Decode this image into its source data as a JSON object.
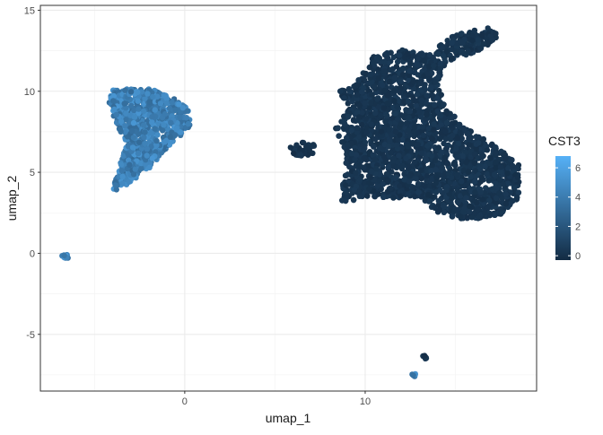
{
  "chart_data": {
    "type": "scatter",
    "xlabel": "umap_1",
    "ylabel": "umap_2",
    "xlim": [
      -8,
      19.5
    ],
    "ylim": [
      -8.5,
      15.3
    ],
    "x_ticks": [
      0,
      10
    ],
    "x_tick_labels": [
      "0",
      "10"
    ],
    "y_ticks": [
      -5,
      0,
      5,
      10,
      15
    ],
    "y_tick_labels": [
      "-5",
      "0",
      "5",
      "10",
      "15"
    ],
    "x_minor_ticks": [
      -5,
      5,
      15
    ],
    "y_minor_ticks": [
      -7.5,
      -2.5,
      2.5,
      7.5,
      12.5
    ],
    "grid": true,
    "legend": {
      "title": "CST3",
      "placement": "right",
      "ticks": [
        0,
        2,
        4,
        6
      ],
      "tick_labels": [
        "0",
        "2",
        "4",
        "6"
      ],
      "range": [
        -0.3,
        6.8
      ],
      "low_color": "#132B43",
      "high_color": "#56B1F7"
    },
    "clusters": [
      {
        "name": "cluster-a-left",
        "center": [
          -2.2,
          8.3
        ],
        "cst3": 4.2,
        "approx_points": 900,
        "outline": [
          [
            -4.0,
            10.1
          ],
          [
            -2.0,
            10.2
          ],
          [
            -1.0,
            9.8
          ],
          [
            0.2,
            9.0
          ],
          [
            0.4,
            8.0
          ],
          [
            0.0,
            7.5
          ],
          [
            -1.0,
            6.5
          ],
          [
            -2.0,
            5.2
          ],
          [
            -3.5,
            4.0
          ],
          [
            -4.0,
            3.8
          ],
          [
            -3.6,
            5.5
          ],
          [
            -3.2,
            6.8
          ],
          [
            -3.8,
            8.0
          ],
          [
            -4.2,
            9.3
          ]
        ]
      },
      {
        "name": "cluster-b-tiny-left",
        "center": [
          -6.6,
          -0.2
        ],
        "cst3": 4.5,
        "approx_points": 12,
        "outline": [
          [
            -6.8,
            -0.05
          ],
          [
            -6.5,
            -0.05
          ],
          [
            -6.4,
            -0.3
          ],
          [
            -6.8,
            -0.35
          ]
        ]
      },
      {
        "name": "cluster-c-small-mid",
        "center": [
          6.4,
          6.4
        ],
        "cst3": 0.1,
        "approx_points": 40,
        "outline": [
          [
            5.8,
            6.6
          ],
          [
            6.4,
            6.9
          ],
          [
            7.2,
            6.7
          ],
          [
            7.1,
            6.1
          ],
          [
            6.4,
            6.0
          ],
          [
            5.8,
            6.2
          ]
        ]
      },
      {
        "name": "cluster-d-large-right",
        "center": [
          12.8,
          7.0
        ],
        "cst3": 0.2,
        "approx_points": 9000,
        "outline": [
          [
            9.5,
            10.5
          ],
          [
            10.5,
            12.2
          ],
          [
            12.0,
            12.6
          ],
          [
            13.5,
            12.3
          ],
          [
            15.0,
            13.5
          ],
          [
            16.8,
            14.0
          ],
          [
            17.4,
            13.6
          ],
          [
            17.0,
            12.8
          ],
          [
            14.5,
            11.8
          ],
          [
            14.0,
            10.5
          ],
          [
            14.5,
            9.0
          ],
          [
            15.5,
            7.8
          ],
          [
            17.5,
            6.5
          ],
          [
            18.5,
            5.5
          ],
          [
            18.6,
            3.5
          ],
          [
            17.5,
            2.4
          ],
          [
            15.5,
            2.0
          ],
          [
            14.0,
            2.5
          ],
          [
            13.0,
            3.5
          ],
          [
            11.5,
            3.4
          ],
          [
            10.0,
            3.5
          ],
          [
            8.6,
            3.0
          ],
          [
            9.0,
            6.0
          ],
          [
            8.3,
            7.7
          ],
          [
            9.2,
            9.0
          ],
          [
            8.5,
            10.0
          ]
        ]
      },
      {
        "name": "cluster-e-bottom-a",
        "center": [
          13.3,
          -6.4
        ],
        "cst3": 0.1,
        "approx_points": 6,
        "outline": [
          [
            13.2,
            -6.3
          ],
          [
            13.4,
            -6.3
          ],
          [
            13.4,
            -6.5
          ],
          [
            13.2,
            -6.5
          ]
        ]
      },
      {
        "name": "cluster-f-bottom-b",
        "center": [
          12.7,
          -7.5
        ],
        "cst3": 4.6,
        "approx_points": 6,
        "outline": [
          [
            12.6,
            -7.4
          ],
          [
            12.8,
            -7.4
          ],
          [
            12.8,
            -7.6
          ],
          [
            12.6,
            -7.6
          ]
        ]
      }
    ]
  }
}
